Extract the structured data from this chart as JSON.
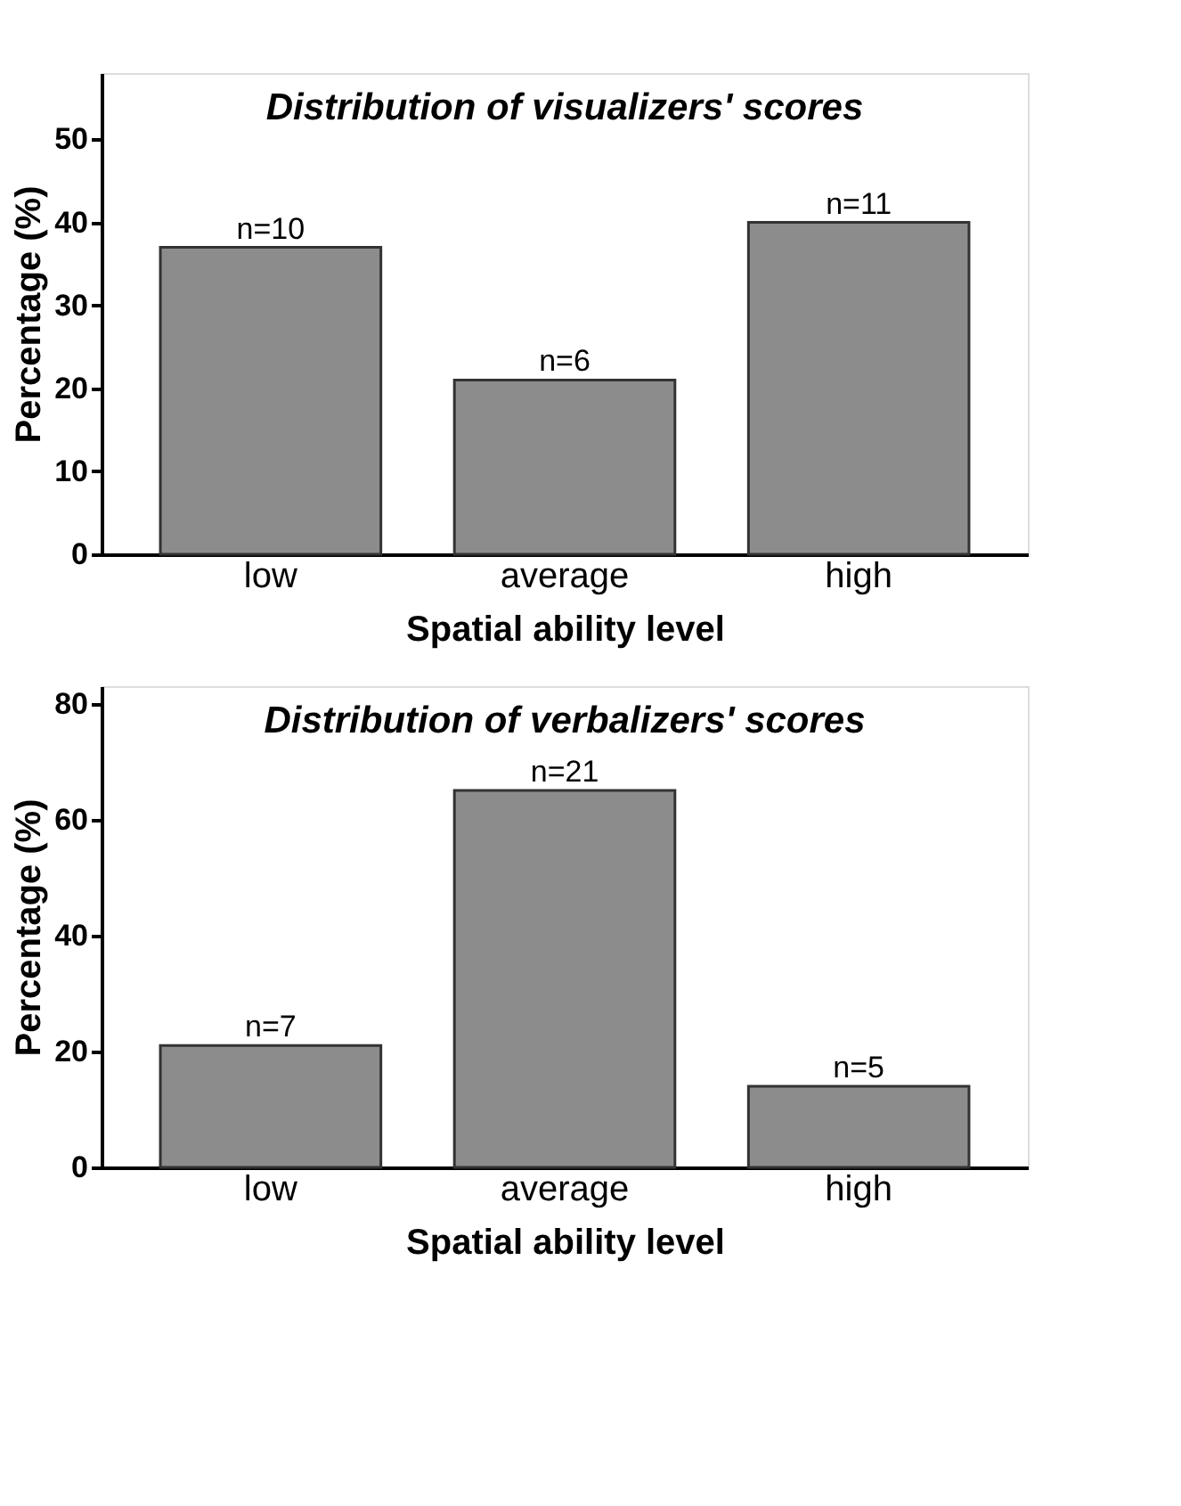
{
  "chart_data": [
    {
      "type": "bar",
      "title": "Distribution of visualizers' scores",
      "xlabel": "Spatial ability level",
      "ylabel": "Percentage (%)",
      "categories": [
        "low",
        "average",
        "high"
      ],
      "values": [
        37,
        21,
        40
      ],
      "color": "#8c8c8c",
      "ylim": [
        0,
        58
      ],
      "yticks": [
        0,
        10,
        20,
        30,
        40,
        50
      ],
      "grid": false,
      "annotations": [
        {
          "text": "n=10",
          "x": "low",
          "y": 37
        },
        {
          "text": "n=6",
          "x": "average",
          "y": 21
        },
        {
          "text": "n=11",
          "x": "high",
          "y": 40
        }
      ]
    },
    {
      "type": "bar",
      "title": "Distribution of verbalizers' scores",
      "xlabel": "Spatial ability level",
      "ylabel": "Percentage (%)",
      "categories": [
        "low",
        "average",
        "high"
      ],
      "values": [
        21,
        65,
        14
      ],
      "color": "#8c8c8c",
      "ylim": [
        0,
        83
      ],
      "yticks": [
        0,
        20,
        40,
        60,
        80
      ],
      "grid": false,
      "annotations": [
        {
          "text": "n=7",
          "x": "low",
          "y": 21
        },
        {
          "text": "n=21",
          "x": "average",
          "y": 65
        },
        {
          "text": "n=5",
          "x": "high",
          "y": 14
        }
      ]
    }
  ]
}
